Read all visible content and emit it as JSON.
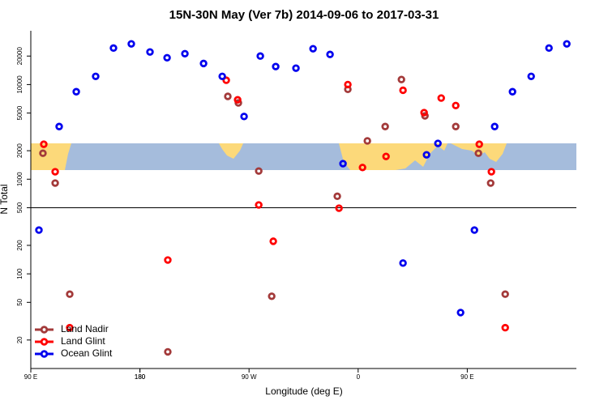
{
  "chart_data": {
    "type": "scatter",
    "title": "15N-30N May (Ver 7b)   2014-09-06 to 2017-03-31",
    "x_label": "Longitude (deg E)",
    "y_label": "N Total",
    "xlim": [
      90,
      540
    ],
    "ylim": [
      10,
      37000
    ],
    "ylog": true,
    "legend": "bottom-left",
    "hline": 500,
    "xticks": [
      {
        "value": 90,
        "label": "90 E"
      },
      180,
      {
        "value": 270,
        "label": "90 W"
      },
      {
        "value": 360,
        "label": "0"
      },
      {
        "value": 450,
        "label": "90 E"
      },
      180
    ],
    "yticks": [
      20,
      50,
      100,
      200,
      500,
      1000,
      2000,
      5000,
      10000,
      20000
    ],
    "series": [
      {
        "name": "Land Nadir",
        "color": "#a33a3a",
        "x": [
          100.0,
          110.1,
          122.1,
          203.0,
          252.5,
          261.2,
          278.0,
          288.7,
          342.8,
          351.5,
          367.6,
          382.3,
          395.7,
          415.1,
          440.5,
          459.2,
          469.3,
          481.3
        ],
        "values": [
          1880,
          910,
          61,
          15,
          7500,
          6400,
          1220,
          58,
          660,
          8900,
          2540,
          3600,
          11300,
          4670,
          3600,
          1880,
          910,
          61
        ]
      },
      {
        "name": "Land Glint",
        "color": "#ff0000",
        "x": [
          100.7,
          110.1,
          122.1,
          203.0,
          251.2,
          260.6,
          278.0,
          290.0,
          344.2,
          351.5,
          363.6,
          383.0,
          397.0,
          414.4,
          428.5,
          440.5,
          459.9,
          469.9,
          481.3
        ],
        "values": [
          2340,
          1200,
          27,
          140,
          11100,
          6900,
          535,
          221,
          494,
          10000,
          1330,
          1740,
          8700,
          5050,
          7200,
          6000,
          2340,
          1200,
          27
        ]
      },
      {
        "name": "Ocean Glint",
        "color": "#0000ee",
        "x": [
          96.7,
          113.4,
          127.5,
          143.5,
          158.2,
          172.9,
          188.3,
          202.4,
          217.1,
          232.5,
          247.9,
          265.9,
          279.3,
          292.0,
          308.7,
          322.8,
          336.8,
          347.5,
          397.0,
          416.4,
          425.8,
          444.5,
          455.9,
          472.6,
          487.3,
          502.7,
          517.4,
          532.1
        ],
        "values": [
          290,
          3600,
          8400,
          12200,
          24300,
          26900,
          22100,
          19200,
          21200,
          16700,
          12200,
          4600,
          20000,
          15500,
          14900,
          23900,
          20800,
          1460,
          130,
          1810,
          2390,
          39,
          290,
          3600,
          8400,
          12200,
          24300,
          26900
        ]
      }
    ]
  }
}
